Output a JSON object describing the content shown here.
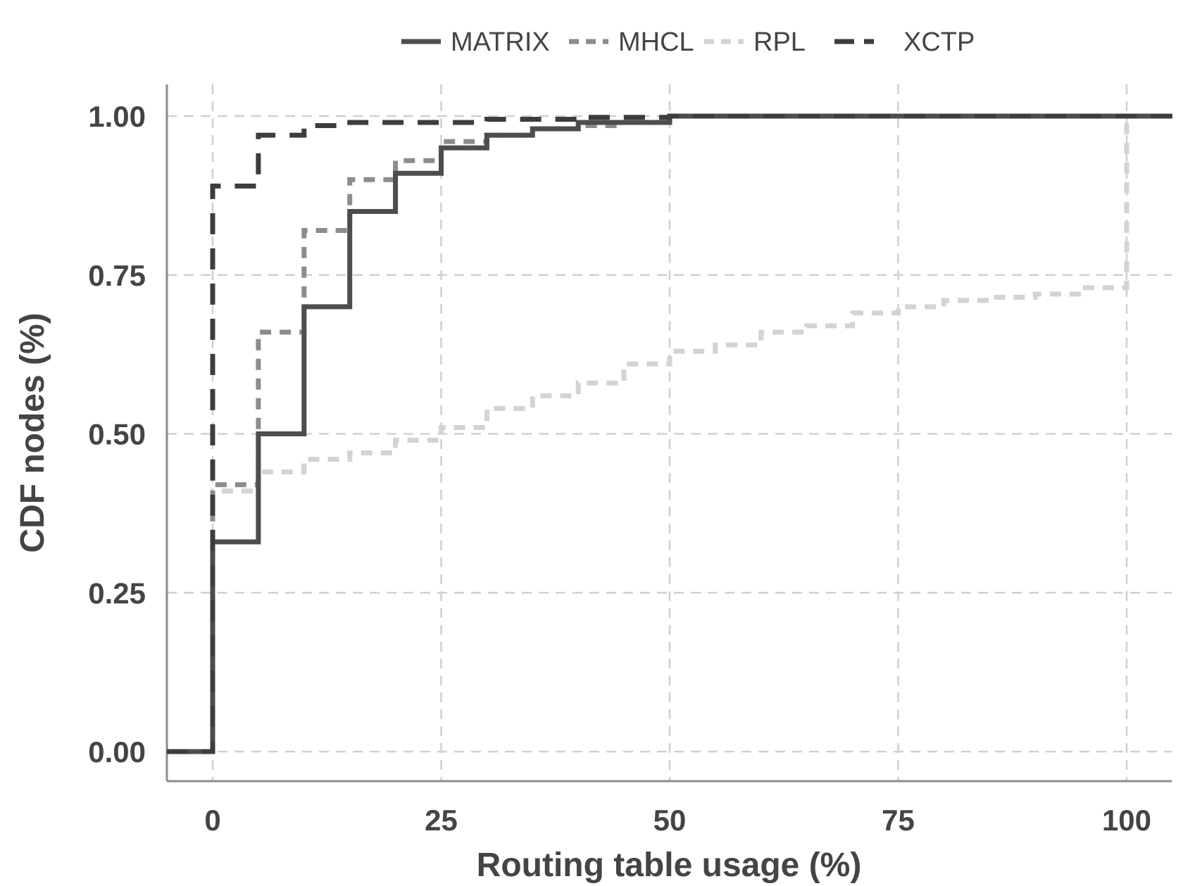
{
  "chart_data": {
    "type": "line",
    "subtype": "step-cdf",
    "xlabel": "Routing table usage (%)",
    "ylabel": "CDF nodes (%)",
    "xlim": [
      -5,
      105
    ],
    "ylim": [
      -0.1,
      1.1
    ],
    "x_ticks": [
      0,
      25,
      50,
      75,
      100
    ],
    "x_tick_labels": [
      "0",
      "25",
      "50",
      "75",
      "100"
    ],
    "y_ticks": [
      0,
      0.25,
      0.5,
      0.75,
      1.0
    ],
    "y_tick_labels": [
      "0.00",
      "0.25",
      "0.50",
      "0.75",
      "1.00"
    ],
    "grid": true,
    "legend_position": "top",
    "series": [
      {
        "name": "MATRIX",
        "color": "#4d4d4d",
        "dash": "solid",
        "x": [
          -5,
          0,
          5,
          10,
          15,
          20,
          25,
          30,
          35,
          40,
          50,
          105
        ],
        "y": [
          0,
          0.33,
          0.5,
          0.7,
          0.85,
          0.91,
          0.95,
          0.97,
          0.98,
          0.99,
          1.0,
          1.0
        ]
      },
      {
        "name": "MHCL",
        "color": "#8c8c8c",
        "dash": "dashed",
        "x": [
          -5,
          0,
          5,
          10,
          15,
          20,
          25,
          30,
          35,
          40,
          45,
          50,
          105
        ],
        "y": [
          0,
          0.42,
          0.66,
          0.82,
          0.9,
          0.93,
          0.96,
          0.97,
          0.98,
          0.985,
          0.99,
          1.0,
          1.0
        ]
      },
      {
        "name": "RPL",
        "color": "#d3d3d3",
        "dash": "dashed",
        "x": [
          -5,
          0,
          5,
          10,
          15,
          20,
          25,
          30,
          35,
          40,
          45,
          50,
          55,
          60,
          65,
          70,
          75,
          80,
          85,
          90,
          95,
          100,
          105
        ],
        "y": [
          0,
          0.41,
          0.44,
          0.46,
          0.47,
          0.49,
          0.51,
          0.54,
          0.56,
          0.58,
          0.61,
          0.63,
          0.64,
          0.66,
          0.67,
          0.69,
          0.7,
          0.71,
          0.715,
          0.72,
          0.73,
          1.0,
          1.0
        ]
      },
      {
        "name": "XCTP",
        "color": "#3d3d3d",
        "dash": "longdash",
        "x": [
          -5,
          0,
          5,
          10,
          15,
          20,
          30,
          40,
          50,
          105
        ],
        "y": [
          0,
          0.89,
          0.97,
          0.985,
          0.99,
          0.99,
          0.995,
          0.998,
          1.0,
          1.0
        ]
      }
    ]
  }
}
